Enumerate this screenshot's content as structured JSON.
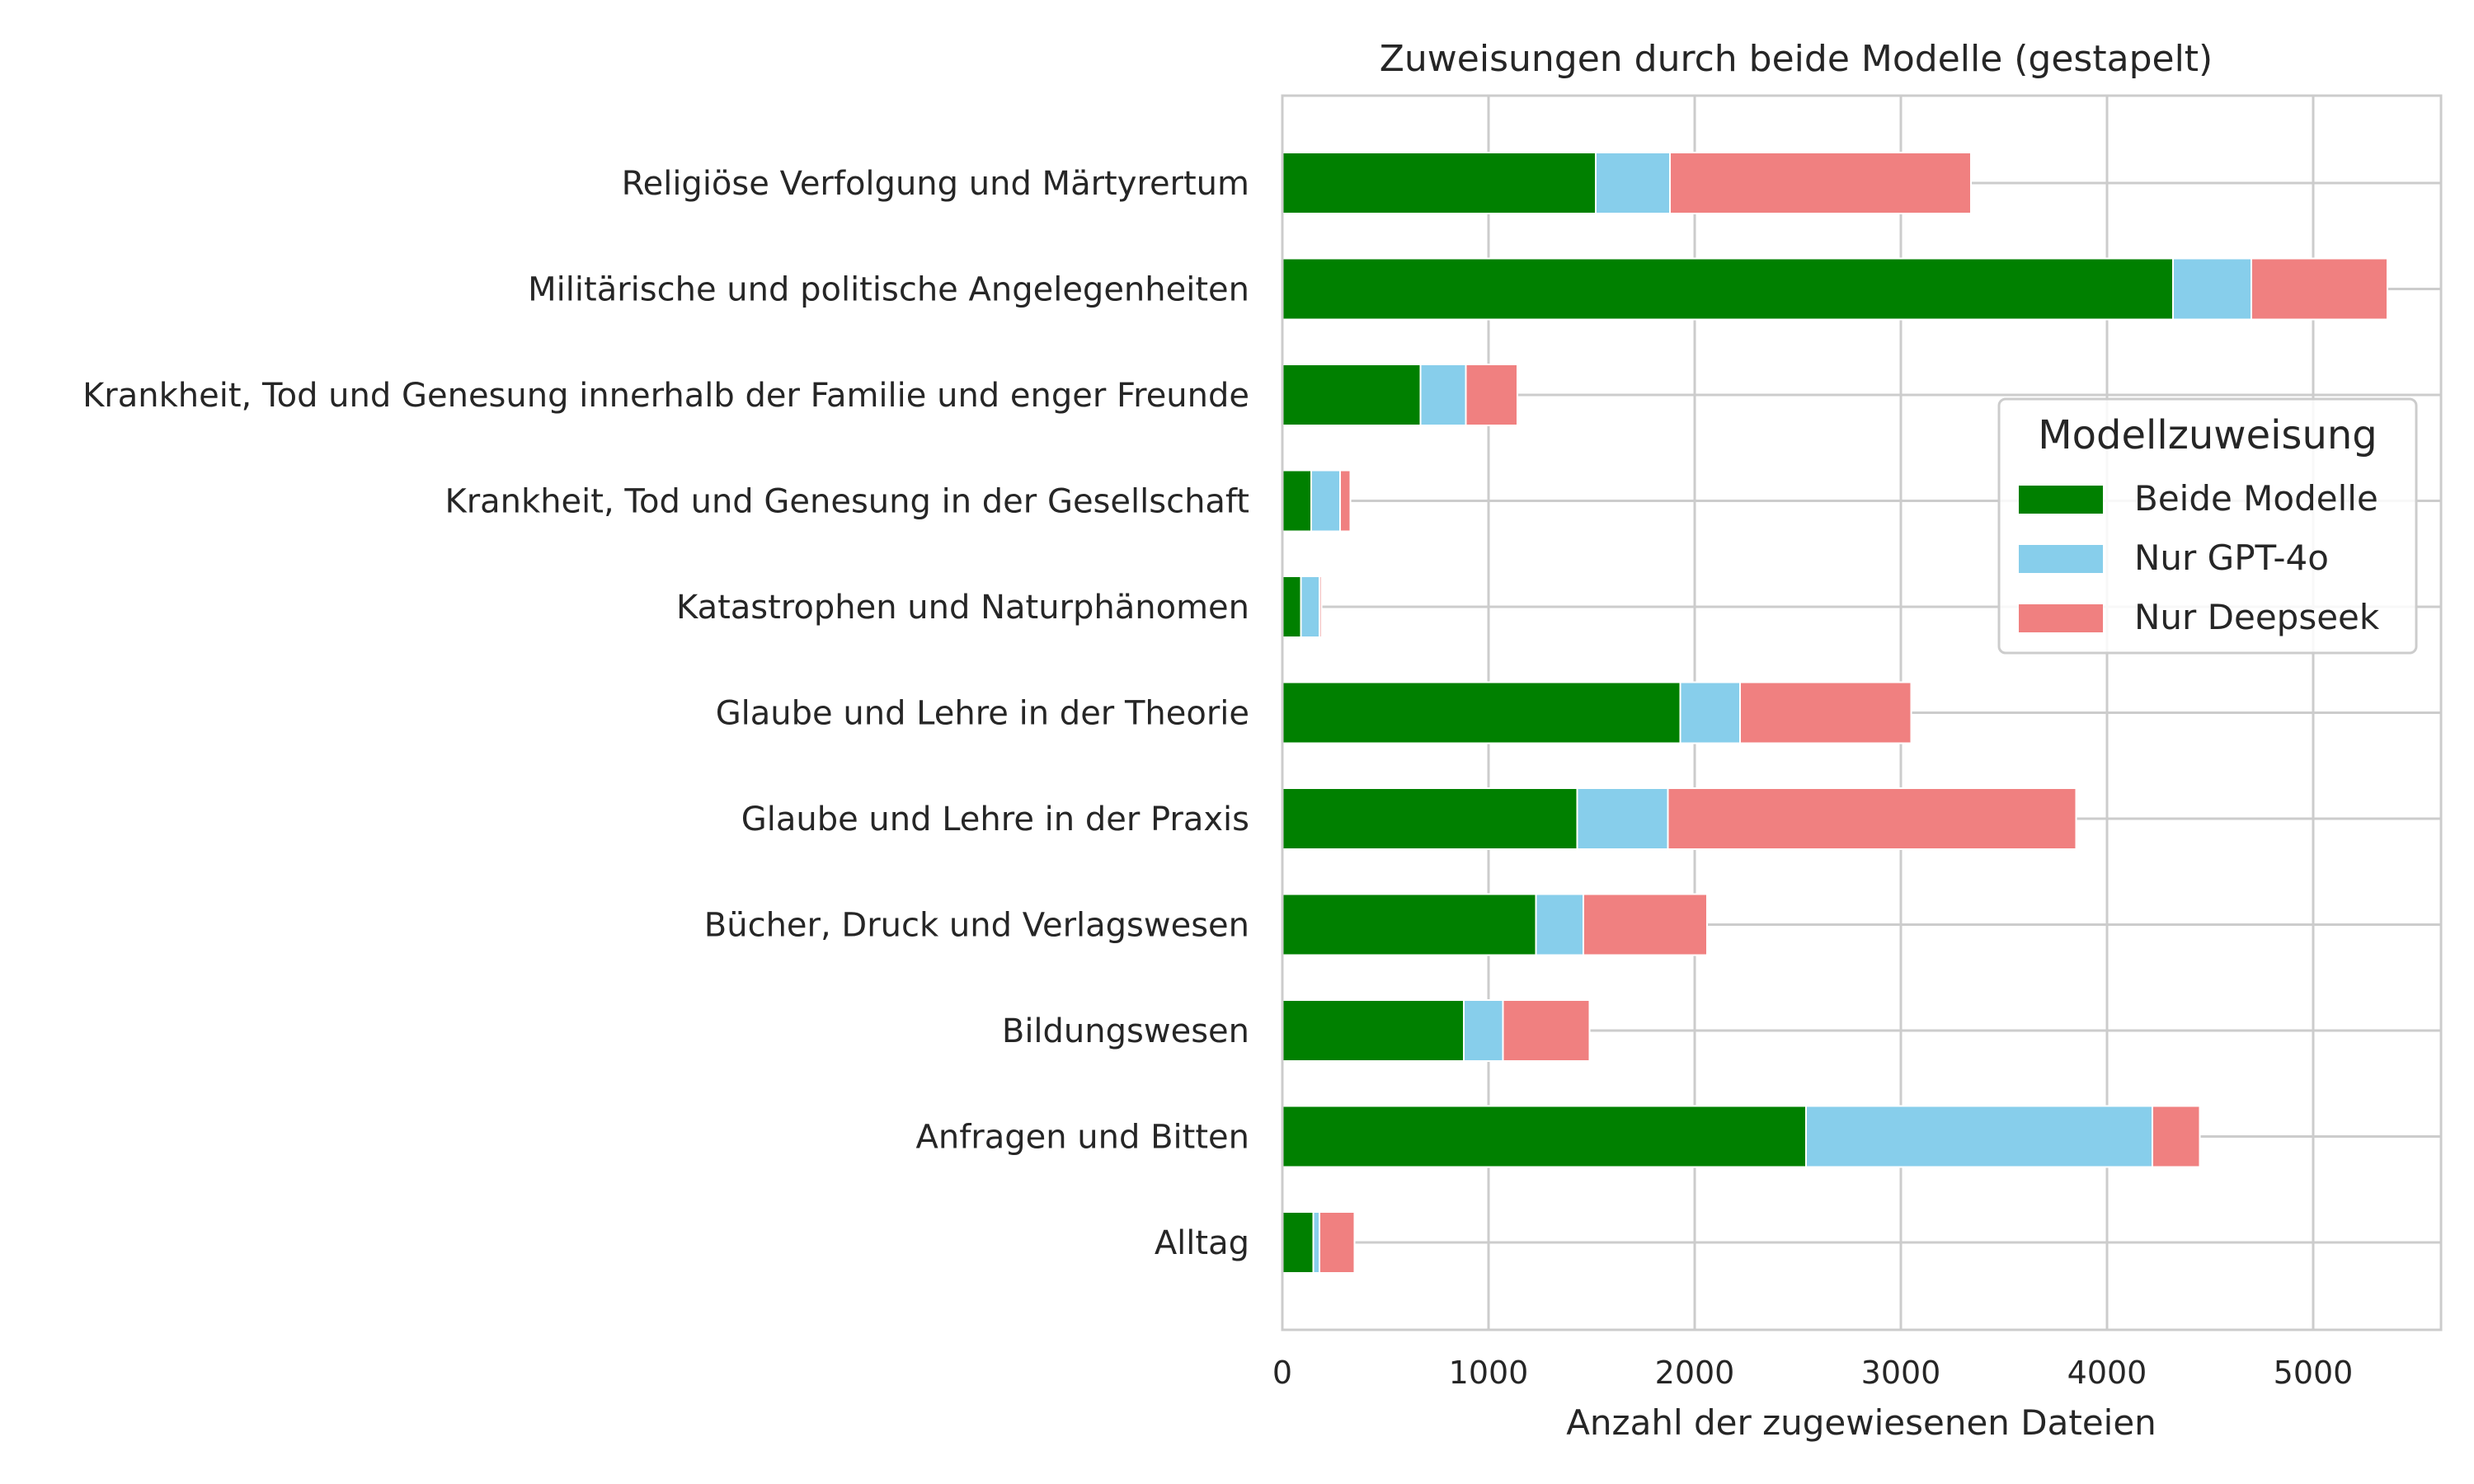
{
  "chart_data": {
    "type": "bar",
    "orientation": "horizontal",
    "stacked": true,
    "title": "Zuweisungen durch beide Modelle (gestapelt)",
    "xlabel": "Anzahl der zugewiesenen Dateien",
    "ylabel": "",
    "xlim": [
      0,
      5600
    ],
    "xticks": [
      0,
      1000,
      2000,
      3000,
      4000,
      5000
    ],
    "grid": true,
    "legend_title": "Modellzuweisung",
    "legend_position": "center-right",
    "categories": [
      "Religiöse Verfolgung und Märtyrertum",
      "Militärische und politische Angelegenheiten",
      "Krankheit, Tod und Genesung innerhalb der Familie und enger Freunde",
      "Krankheit, Tod und Genesung in der Gesellschaft",
      "Katastrophen und Naturphänomen",
      "Glaube und Lehre in der Theorie",
      "Glaube und Lehre in der Praxis",
      "Bücher, Druck und Verlagswesen",
      "Bildungswesen",
      "Anfragen und Bitten",
      "Alltag"
    ],
    "series": [
      {
        "name": "Beide Modelle",
        "color": "#008000",
        "values": [
          1520,
          4320,
          670,
          140,
          90,
          1930,
          1430,
          1230,
          880,
          2540,
          150
        ]
      },
      {
        "name": "Nur GPT-4o",
        "color": "#87CEEB",
        "values": [
          360,
          380,
          220,
          140,
          90,
          290,
          440,
          230,
          190,
          1680,
          30
        ]
      },
      {
        "name": "Nur Deepseek",
        "color": "#F08080",
        "values": [
          1460,
          660,
          250,
          50,
          10,
          830,
          1980,
          600,
          420,
          230,
          170
        ]
      }
    ]
  }
}
